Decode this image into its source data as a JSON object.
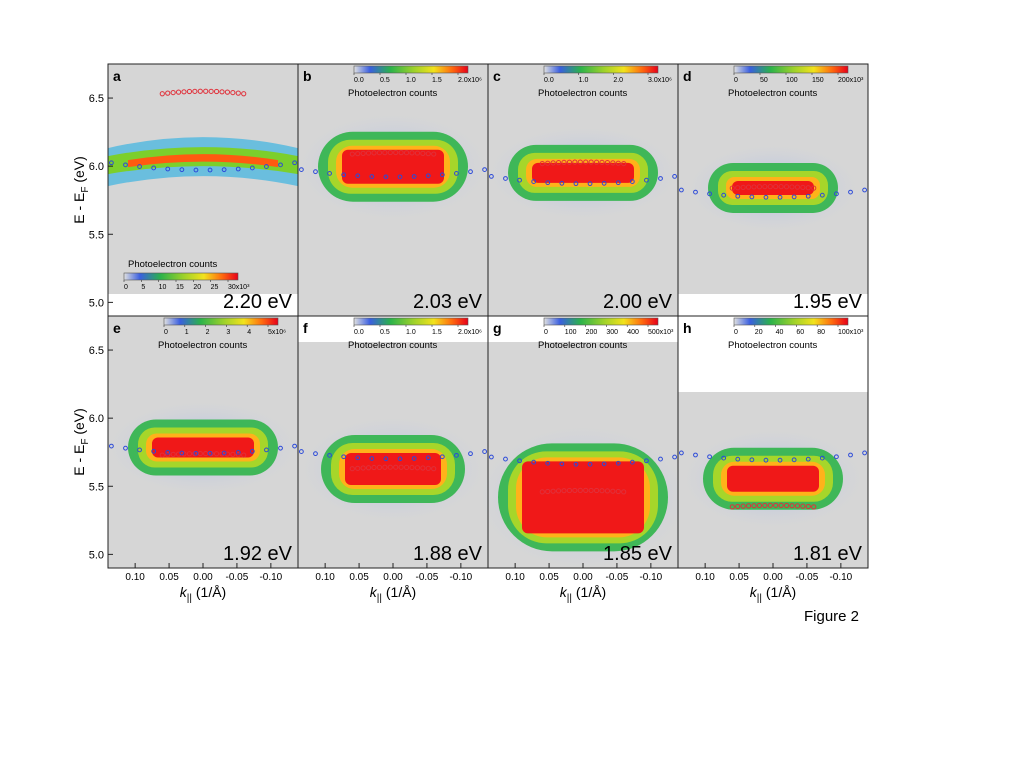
{
  "figure_caption": "Figure 2",
  "y_axis_label": "E - E",
  "y_axis_label_sub": "F",
  "y_axis_unit": " (eV)",
  "y_ticks": [
    "6.5",
    "6.0",
    "5.5",
    "5.0"
  ],
  "x_axis_label_k": "k",
  "x_axis_label_sub": "||",
  "x_axis_unit": " (1/Å)",
  "x_ticks": [
    "0.10",
    "0.05",
    "0.00",
    "-0.05",
    "-0.10"
  ],
  "colorbar_title": "Photoelectron counts",
  "chart_data": [
    {
      "type": "heatmap",
      "panel": "a",
      "photon_energy": "2.20 eV",
      "colorbar_ticks": [
        "0",
        "5",
        "10",
        "15",
        "20",
        "25",
        "30x10³"
      ],
      "x_range": [
        0.14,
        -0.14
      ],
      "y_range": [
        4.9,
        6.75
      ],
      "red_markers_E": 6.55,
      "blue_markers_E": 6.03
    },
    {
      "type": "heatmap",
      "panel": "b",
      "photon_energy": "2.03 eV",
      "colorbar_ticks": [
        "0.0",
        "0.5",
        "1.0",
        "1.5",
        "2.0x10⁶"
      ],
      "x_range": [
        0.14,
        -0.14
      ],
      "y_range": [
        4.9,
        6.75
      ],
      "red_markers_E": 6.1,
      "blue_markers_E": 5.98
    },
    {
      "type": "heatmap",
      "panel": "c",
      "photon_energy": "2.00 eV",
      "colorbar_ticks": [
        "0.0",
        "1.0",
        "2.0",
        "3.0x10⁶"
      ],
      "x_range": [
        0.14,
        -0.14
      ],
      "y_range": [
        4.9,
        6.75
      ],
      "red_markers_E": 6.03,
      "blue_markers_E": 5.93
    },
    {
      "type": "heatmap",
      "panel": "d",
      "photon_energy": "1.95 eV",
      "colorbar_ticks": [
        "0",
        "50",
        "100",
        "150",
        "200x10³"
      ],
      "x_range": [
        0.14,
        -0.14
      ],
      "y_range": [
        4.9,
        6.75
      ],
      "red_markers_E": 5.85,
      "blue_markers_E": 5.83
    },
    {
      "type": "heatmap",
      "panel": "e",
      "photon_energy": "1.92 eV",
      "colorbar_ticks": [
        "0",
        "1",
        "2",
        "3",
        "4",
        "5x10⁶"
      ],
      "x_range": [
        0.14,
        -0.14
      ],
      "y_range": [
        4.9,
        6.75
      ],
      "red_markers_E": 5.74,
      "blue_markers_E": 5.8
    },
    {
      "type": "heatmap",
      "panel": "f",
      "photon_energy": "1.88 eV",
      "colorbar_ticks": [
        "0.0",
        "0.5",
        "1.0",
        "1.5",
        "2.0x10⁶"
      ],
      "x_range": [
        0.14,
        -0.14
      ],
      "y_range": [
        4.9,
        6.75
      ],
      "red_markers_E": 5.64,
      "blue_markers_E": 5.76
    },
    {
      "type": "heatmap",
      "panel": "g",
      "photon_energy": "1.85 eV",
      "colorbar_ticks": [
        "0",
        "100",
        "200",
        "300",
        "400",
        "500x10³"
      ],
      "x_range": [
        0.14,
        -0.14
      ],
      "y_range": [
        4.9,
        6.75
      ],
      "red_markers_E": 5.47,
      "blue_markers_E": 5.72
    },
    {
      "type": "heatmap",
      "panel": "h",
      "photon_energy": "1.81 eV",
      "colorbar_ticks": [
        "0",
        "20",
        "40",
        "60",
        "80",
        "100x10³"
      ],
      "x_range": [
        0.14,
        -0.14
      ],
      "y_range": [
        4.9,
        6.75
      ],
      "red_markers_E": 5.36,
      "blue_markers_E": 5.75
    }
  ]
}
